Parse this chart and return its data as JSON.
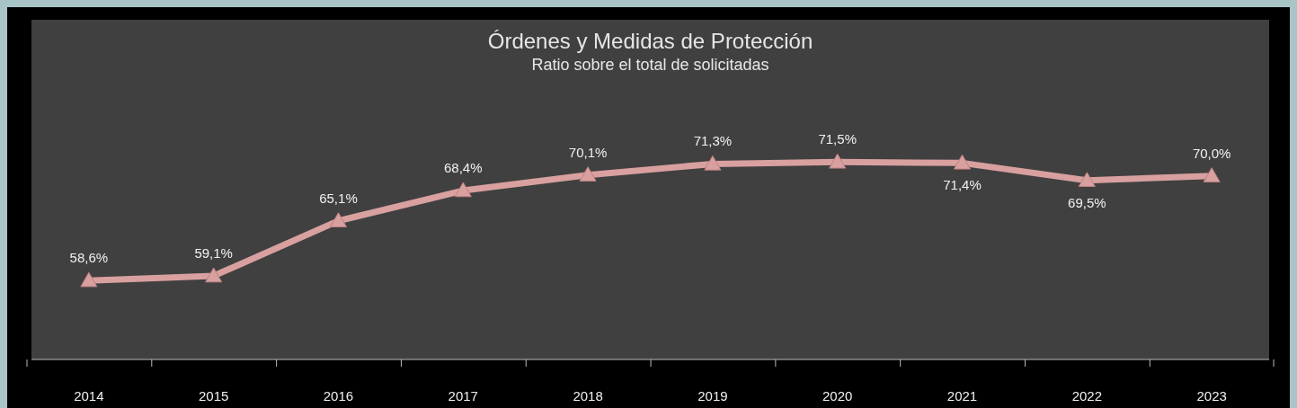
{
  "chart_data": {
    "type": "line",
    "title": "Órdenes y Medidas de Protección",
    "subtitle": "Ratio sobre el total de solicitadas",
    "categories": [
      "2014",
      "2015",
      "2016",
      "2017",
      "2018",
      "2019",
      "2020",
      "2021",
      "2022",
      "2023"
    ],
    "series": [
      {
        "color": "#d9a0a0",
        "values": [
          58.6,
          59.1,
          65.1,
          68.4,
          70.1,
          71.3,
          71.5,
          71.4,
          69.5,
          70.0
        ],
        "value_labels": [
          "58,6%",
          "59,1%",
          "65,1%",
          "68,4%",
          "70,1%",
          "71,3%",
          "71,5%",
          "71,4%",
          "69,5%",
          "70,0%"
        ]
      }
    ],
    "ylim": [
      50,
      87
    ],
    "marker": "triangle"
  }
}
